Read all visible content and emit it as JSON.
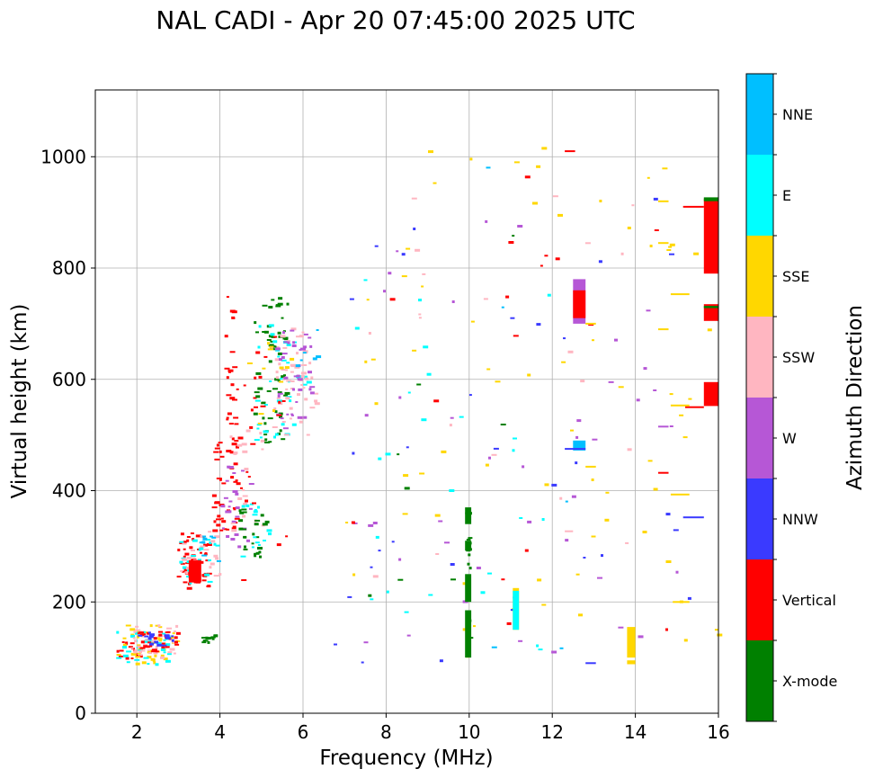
{
  "chart_data": {
    "type": "scatter",
    "title": "NAL CADI - Apr 20 07:45:00 2025 UTC",
    "xlabel": "Frequency (MHz)",
    "ylabel": "Virtual height (km)",
    "xlim": [
      1,
      16
    ],
    "ylim": [
      0,
      1120
    ],
    "xticks": [
      2,
      4,
      6,
      8,
      10,
      12,
      14,
      16
    ],
    "yticks": [
      0,
      200,
      400,
      600,
      800,
      1000
    ],
    "grid": true,
    "colorbar": {
      "label": "Azimuth Direction",
      "categories": [
        {
          "name": "X-mode",
          "color": "#008000"
        },
        {
          "name": "Vertical",
          "color": "#ff0000"
        },
        {
          "name": "NNW",
          "color": "#3a3aff"
        },
        {
          "name": "W",
          "color": "#b657d6"
        },
        {
          "name": "SSW",
          "color": "#ffb6c1"
        },
        {
          "name": "SSE",
          "color": "#ffd700"
        },
        {
          "name": "E",
          "color": "#00ffff"
        },
        {
          "name": "NNE",
          "color": "#00bfff"
        }
      ]
    },
    "clusters": [
      {
        "category": "Vertical",
        "x": [
          1.5,
          2.1
        ],
        "y": [
          100,
          130
        ],
        "n": 18
      },
      {
        "category": "SSE",
        "x": [
          1.5,
          3.0
        ],
        "y": [
          90,
          160
        ],
        "n": 40
      },
      {
        "category": "E",
        "x": [
          1.5,
          2.9
        ],
        "y": [
          90,
          150
        ],
        "n": 30
      },
      {
        "category": "SSW",
        "x": [
          1.8,
          3.0
        ],
        "y": [
          100,
          160
        ],
        "n": 35
      },
      {
        "category": "Vertical",
        "x": [
          2.0,
          3.0
        ],
        "y": [
          110,
          150
        ],
        "n": 30
      },
      {
        "category": "NNW",
        "x": [
          2.0,
          2.9
        ],
        "y": [
          110,
          150
        ],
        "n": 15
      },
      {
        "category": "X-mode",
        "x": [
          3.4,
          3.9
        ],
        "y": [
          125,
          142
        ],
        "n": 12
      },
      {
        "category": "Vertical",
        "x": [
          2.95,
          3.7
        ],
        "y": [
          225,
          325
        ],
        "n": 60
      },
      {
        "category": "E",
        "x": [
          2.95,
          3.9
        ],
        "y": [
          230,
          320
        ],
        "n": 22
      },
      {
        "category": "SSW",
        "x": [
          3.0,
          4.0
        ],
        "y": [
          240,
          330
        ],
        "n": 20
      },
      {
        "category": "NNE",
        "x": [
          3.4,
          4.0
        ],
        "y": [
          260,
          320
        ],
        "n": 8
      },
      {
        "category": "Vertical",
        "x": [
          3.8,
          4.4
        ],
        "y": [
          330,
          500
        ],
        "n": 40
      },
      {
        "category": "W",
        "x": [
          4.0,
          4.8
        ],
        "y": [
          300,
          450
        ],
        "n": 25
      },
      {
        "category": "SSW",
        "x": [
          4.2,
          5.0
        ],
        "y": [
          330,
          520
        ],
        "n": 20
      },
      {
        "category": "X-mode",
        "x": [
          4.4,
          5.2
        ],
        "y": [
          280,
          390
        ],
        "n": 25
      },
      {
        "category": "E",
        "x": [
          4.4,
          5.2
        ],
        "y": [
          280,
          400
        ],
        "n": 15
      },
      {
        "category": "Vertical",
        "x": [
          4.1,
          4.3
        ],
        "y": [
          520,
          750
        ],
        "n": 20
      },
      {
        "category": "Vertical",
        "x": [
          4.3,
          4.8
        ],
        "y": [
          350,
          600
        ],
        "n": 15
      },
      {
        "category": "X-mode",
        "x": [
          4.8,
          5.6
        ],
        "y": [
          480,
          750
        ],
        "n": 60
      },
      {
        "category": "E",
        "x": [
          4.8,
          6.1
        ],
        "y": [
          480,
          700
        ],
        "n": 35
      },
      {
        "category": "SSW",
        "x": [
          5.2,
          6.3
        ],
        "y": [
          500,
          700
        ],
        "n": 55
      },
      {
        "category": "W",
        "x": [
          5.3,
          6.3
        ],
        "y": [
          510,
          690
        ],
        "n": 40
      },
      {
        "category": "SSE",
        "x": [
          4.6,
          5.8
        ],
        "y": [
          500,
          700
        ],
        "n": 12
      },
      {
        "category": "Vertical",
        "x": [
          4.6,
          5.6
        ],
        "y": [
          500,
          720
        ],
        "n": 12
      },
      {
        "category": "NNE",
        "x": [
          5.8,
          6.4
        ],
        "y": [
          600,
          700
        ],
        "n": 6
      },
      {
        "category": "X-mode",
        "x": [
          9.9,
          10.0
        ],
        "y": [
          100,
          370
        ],
        "n": 14
      },
      {
        "category": "SSE",
        "x": [
          7.0,
          16.0
        ],
        "y": [
          90,
          1020
        ],
        "n": 70
      },
      {
        "category": "W",
        "x": [
          7.0,
          15.0
        ],
        "y": [
          90,
          900
        ],
        "n": 40
      },
      {
        "category": "E",
        "x": [
          7.0,
          12.0
        ],
        "y": [
          90,
          800
        ],
        "n": 25
      },
      {
        "category": "NNW",
        "x": [
          6.5,
          15.5
        ],
        "y": [
          90,
          1010
        ],
        "n": 30
      },
      {
        "category": "Vertical",
        "x": [
          4.2,
          15.5
        ],
        "y": [
          100,
          1010
        ],
        "n": 20
      },
      {
        "category": "SSW",
        "x": [
          7.5,
          15.0
        ],
        "y": [
          90,
          1000
        ],
        "n": 20
      },
      {
        "category": "NNE",
        "x": [
          9.8,
          12.8
        ],
        "y": [
          90,
          1015
        ],
        "n": 6
      },
      {
        "category": "X-mode",
        "x": [
          7.0,
          12.5
        ],
        "y": [
          90,
          860
        ],
        "n": 8
      }
    ],
    "blocks": [
      {
        "category": "Vertical",
        "x": [
          3.25,
          3.55
        ],
        "y": [
          235,
          275
        ]
      },
      {
        "category": "X-mode",
        "x": [
          9.9,
          10.05
        ],
        "y": [
          200,
          250
        ]
      },
      {
        "category": "X-mode",
        "x": [
          9.9,
          10.05
        ],
        "y": [
          100,
          185
        ]
      },
      {
        "category": "X-mode",
        "x": [
          9.9,
          10.05
        ],
        "y": [
          340,
          370
        ]
      },
      {
        "category": "X-mode",
        "x": [
          9.9,
          10.05
        ],
        "y": [
          292,
          310
        ]
      },
      {
        "category": "SSE",
        "x": [
          11.05,
          11.2
        ],
        "y": [
          150,
          225
        ]
      },
      {
        "category": "E",
        "x": [
          11.05,
          11.2
        ],
        "y": [
          150,
          220
        ]
      },
      {
        "category": "NNE",
        "x": [
          12.5,
          12.8
        ],
        "y": [
          472,
          490
        ]
      },
      {
        "category": "W",
        "x": [
          12.5,
          12.8
        ],
        "y": [
          700,
          780
        ]
      },
      {
        "category": "Vertical",
        "x": [
          12.5,
          12.8
        ],
        "y": [
          710,
          760
        ]
      },
      {
        "category": "SSE",
        "x": [
          13.8,
          14.0
        ],
        "y": [
          100,
          155
        ]
      },
      {
        "category": "SSE",
        "x": [
          13.8,
          14.0
        ],
        "y": [
          88,
          95
        ]
      },
      {
        "category": "Vertical",
        "x": [
          15.65,
          16.0
        ],
        "y": [
          790,
          925
        ]
      },
      {
        "category": "Vertical",
        "x": [
          15.65,
          16.0
        ],
        "y": [
          705,
          735
        ]
      },
      {
        "category": "Vertical",
        "x": [
          15.65,
          16.0
        ],
        "y": [
          552,
          595
        ]
      },
      {
        "category": "X-mode",
        "x": [
          15.65,
          16.0
        ],
        "y": [
          920,
          927
        ]
      },
      {
        "category": "X-mode",
        "x": [
          15.65,
          16.0
        ],
        "y": [
          728,
          732
        ]
      }
    ],
    "lines": [
      {
        "category": "Vertical",
        "x": [
          15.15,
          15.65
        ],
        "y": 910
      },
      {
        "category": "Vertical",
        "x": [
          15.2,
          15.65
        ],
        "y": 550
      },
      {
        "category": "NNW",
        "x": [
          15.15,
          15.65
        ],
        "y": 352
      },
      {
        "category": "SSE",
        "x": [
          14.9,
          15.3
        ],
        "y": 200
      },
      {
        "category": "SSE",
        "x": [
          14.85,
          15.3
        ],
        "y": 753
      },
      {
        "category": "SSE",
        "x": [
          14.85,
          15.3
        ],
        "y": 553
      },
      {
        "category": "SSE",
        "x": [
          14.85,
          15.3
        ],
        "y": 393
      },
      {
        "category": "SSE",
        "x": [
          14.55,
          14.8
        ],
        "y": 920
      },
      {
        "category": "SSE",
        "x": [
          14.55,
          14.8
        ],
        "y": 845
      },
      {
        "category": "SSE",
        "x": [
          14.55,
          14.8
        ],
        "y": 690
      },
      {
        "category": "W",
        "x": [
          14.55,
          14.8
        ],
        "y": 515
      },
      {
        "category": "Vertical",
        "x": [
          14.55,
          14.8
        ],
        "y": 432
      },
      {
        "category": "NNW",
        "x": [
          12.3,
          12.8
        ],
        "y": 475
      },
      {
        "category": "SSW",
        "x": [
          12.3,
          12.5
        ],
        "y": 327
      },
      {
        "category": "NNW",
        "x": [
          12.8,
          13.05
        ],
        "y": 90
      },
      {
        "category": "SSE",
        "x": [
          12.8,
          13.05
        ],
        "y": 443
      },
      {
        "category": "SSE",
        "x": [
          12.8,
          13.05
        ],
        "y": 700
      },
      {
        "category": "Vertical",
        "x": [
          12.3,
          12.55
        ],
        "y": 1010
      }
    ]
  }
}
